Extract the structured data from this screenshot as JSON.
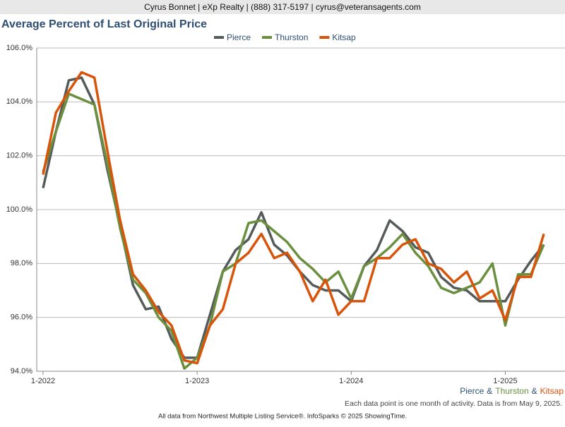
{
  "header": "Cyrus Bonnet | eXp Realty | (888) 317-5197 | cyrus@veteransagents.com",
  "chart_data": {
    "type": "line",
    "title": "Average Percent of Last Original Price",
    "categories": [
      "1-2022",
      null,
      null,
      null,
      null,
      null,
      null,
      null,
      null,
      null,
      null,
      null,
      "1-2023",
      null,
      null,
      null,
      null,
      null,
      null,
      null,
      null,
      null,
      null,
      null,
      "1-2024",
      null,
      null,
      null,
      null,
      null,
      null,
      null,
      null,
      null,
      null,
      null,
      "1-2025",
      null,
      null,
      null
    ],
    "series": [
      {
        "name": "Pierce",
        "color": "#555b5b",
        "values": [
          100.8,
          102.9,
          104.8,
          104.9,
          103.9,
          101.5,
          99.4,
          97.2,
          96.3,
          96.4,
          95.2,
          94.5,
          94.5,
          96.1,
          97.7,
          98.5,
          98.9,
          99.9,
          98.7,
          98.3,
          97.7,
          97.2,
          97.0,
          97.0,
          96.6,
          97.9,
          98.5,
          99.6,
          99.2,
          98.6,
          98.4,
          97.5,
          97.1,
          97.0,
          96.6,
          96.6,
          96.6,
          97.4,
          98.1,
          98.7
        ]
      },
      {
        "name": "Thurston",
        "color": "#6a8f3f",
        "values": [
          101.4,
          102.9,
          104.3,
          104.1,
          103.9,
          101.7,
          99.3,
          97.4,
          96.9,
          96.0,
          95.5,
          94.1,
          94.5,
          95.7,
          97.7,
          98.0,
          99.5,
          99.6,
          99.2,
          98.8,
          98.2,
          97.8,
          97.3,
          97.7,
          96.7,
          97.9,
          98.2,
          98.6,
          99.1,
          98.4,
          97.9,
          97.1,
          96.9,
          97.1,
          97.3,
          98.0,
          95.7,
          97.6,
          97.6,
          98.7
        ]
      },
      {
        "name": "Kitsap",
        "color": "#d9540b",
        "values": [
          101.3,
          103.6,
          104.4,
          105.1,
          104.9,
          102.2,
          99.6,
          97.6,
          97.0,
          96.2,
          95.7,
          94.4,
          94.3,
          95.7,
          96.3,
          98.0,
          98.4,
          99.1,
          98.2,
          98.4,
          97.7,
          96.6,
          97.4,
          96.1,
          96.6,
          96.6,
          98.2,
          98.2,
          98.7,
          98.9,
          98.0,
          97.8,
          97.3,
          97.7,
          96.7,
          97.0,
          95.9,
          97.5,
          97.5,
          99.1
        ]
      }
    ],
    "ylim": [
      94,
      106
    ],
    "yticks": [
      {
        "value": 94,
        "label": "94.0%"
      },
      {
        "value": 96,
        "label": "96.0%"
      },
      {
        "value": 98,
        "label": "98.0%"
      },
      {
        "value": 100,
        "label": "100.0%"
      },
      {
        "value": 102,
        "label": "102.0%"
      },
      {
        "value": 104,
        "label": "104.0%"
      },
      {
        "value": 106,
        "label": "106.0%"
      }
    ],
    "grid": true,
    "legend": "top",
    "area_separator": "&",
    "note": "Each data point is one month of activity. Data is from May 9, 2025."
  },
  "footer": "All data from Northwest Multiple Listing Service®. InfoSparks © 2025 ShowingTime."
}
